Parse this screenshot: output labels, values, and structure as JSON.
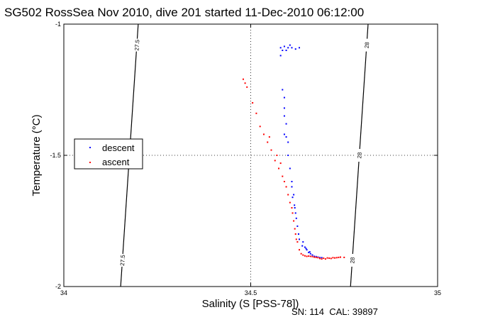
{
  "chart_data": {
    "type": "scatter",
    "title": "SG502 RossSea Nov 2010, dive 201 started 11-Dec-2010 06:12:00",
    "xlabel": "Salinity (S [PSS-78])",
    "ylabel": "Temperature (°C)",
    "xlim": [
      34,
      35
    ],
    "ylim": [
      -2,
      -1
    ],
    "xticks": [
      "34",
      "34.5",
      "35"
    ],
    "yticks": [
      "-2",
      "-1.5",
      "-1"
    ],
    "grid": "dotted at tick positions",
    "legend_position": "left",
    "footer": "SN: 114  CAL: 39897",
    "contours": [
      {
        "label": "27.5",
        "points": [
          [
            34.199,
            -1.0
          ],
          [
            34.152,
            -2.0
          ]
        ]
      },
      {
        "label": "28",
        "points": [
          [
            34.814,
            -1.0
          ],
          [
            34.767,
            -2.0
          ]
        ]
      }
    ],
    "series": [
      {
        "name": "descent",
        "color": "#0000ff",
        "points": [
          [
            34.58,
            -1.12
          ],
          [
            34.585,
            -1.1
          ],
          [
            34.59,
            -1.085
          ],
          [
            34.6,
            -1.09
          ],
          [
            34.61,
            -1.09
          ],
          [
            34.62,
            -1.095
          ],
          [
            34.63,
            -1.09
          ],
          [
            34.595,
            -1.1
          ],
          [
            34.605,
            -1.08
          ],
          [
            34.58,
            -1.09
          ],
          [
            34.585,
            -1.25
          ],
          [
            34.59,
            -1.28
          ],
          [
            34.59,
            -1.32
          ],
          [
            34.59,
            -1.35
          ],
          [
            34.595,
            -1.38
          ],
          [
            34.59,
            -1.42
          ],
          [
            34.595,
            -1.43
          ],
          [
            34.6,
            -1.45
          ],
          [
            34.6,
            -1.5
          ],
          [
            34.605,
            -1.55
          ],
          [
            34.61,
            -1.6
          ],
          [
            34.61,
            -1.62
          ],
          [
            34.615,
            -1.65
          ],
          [
            34.618,
            -1.7
          ],
          [
            34.62,
            -1.72
          ],
          [
            34.622,
            -1.74
          ],
          [
            34.625,
            -1.77
          ],
          [
            34.628,
            -1.8
          ],
          [
            34.63,
            -1.82
          ],
          [
            34.64,
            -1.83
          ],
          [
            34.645,
            -1.85
          ],
          [
            34.65,
            -1.86
          ],
          [
            34.655,
            -1.87
          ],
          [
            34.66,
            -1.875
          ],
          [
            34.665,
            -1.88
          ],
          [
            34.67,
            -1.885
          ],
          [
            34.675,
            -1.886
          ],
          [
            34.68,
            -1.888
          ],
          [
            34.685,
            -1.89
          ],
          [
            34.69,
            -1.89
          ],
          [
            34.638,
            -1.845
          ],
          [
            34.648,
            -1.855
          ],
          [
            34.658,
            -1.868
          ],
          [
            34.612,
            -1.66
          ],
          [
            34.617,
            -1.69
          ]
        ]
      },
      {
        "name": "ascent",
        "color": "#ff0000",
        "points": [
          [
            34.48,
            -1.21
          ],
          [
            34.485,
            -1.225
          ],
          [
            34.49,
            -1.24
          ],
          [
            34.505,
            -1.3
          ],
          [
            34.515,
            -1.34
          ],
          [
            34.525,
            -1.39
          ],
          [
            34.535,
            -1.42
          ],
          [
            34.545,
            -1.45
          ],
          [
            34.555,
            -1.48
          ],
          [
            34.565,
            -1.52
          ],
          [
            34.575,
            -1.55
          ],
          [
            34.585,
            -1.58
          ],
          [
            34.595,
            -1.62
          ],
          [
            34.6,
            -1.65
          ],
          [
            34.605,
            -1.68
          ],
          [
            34.61,
            -1.7
          ],
          [
            34.612,
            -1.72
          ],
          [
            34.615,
            -1.75
          ],
          [
            34.618,
            -1.78
          ],
          [
            34.62,
            -1.8
          ],
          [
            34.625,
            -1.83
          ],
          [
            34.63,
            -1.86
          ],
          [
            34.635,
            -1.875
          ],
          [
            34.64,
            -1.88
          ],
          [
            34.65,
            -1.885
          ],
          [
            34.66,
            -1.885
          ],
          [
            34.67,
            -1.888
          ],
          [
            34.68,
            -1.89
          ],
          [
            34.69,
            -1.895
          ],
          [
            34.7,
            -1.895
          ],
          [
            34.71,
            -1.892
          ],
          [
            34.72,
            -1.89
          ],
          [
            34.73,
            -1.89
          ],
          [
            34.74,
            -1.888
          ],
          [
            34.75,
            -1.889
          ],
          [
            34.645,
            -1.883
          ],
          [
            34.655,
            -1.884
          ],
          [
            34.665,
            -1.886
          ],
          [
            34.675,
            -1.889
          ],
          [
            34.685,
            -1.893
          ],
          [
            34.695,
            -1.892
          ],
          [
            34.705,
            -1.891
          ],
          [
            34.715,
            -1.893
          ],
          [
            34.725,
            -1.891
          ],
          [
            34.735,
            -1.889
          ],
          [
            34.55,
            -1.43
          ],
          [
            34.57,
            -1.5
          ],
          [
            34.58,
            -1.53
          ],
          [
            34.59,
            -1.6
          ],
          [
            34.622,
            -1.82
          ]
        ]
      }
    ]
  }
}
